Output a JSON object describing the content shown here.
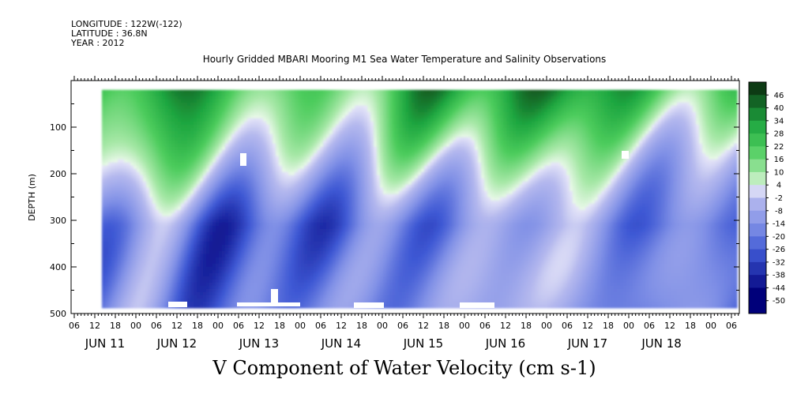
{
  "meta": {
    "longitude": "LONGITUDE : 122W(-122)",
    "latitude": "LATITUDE : 36.8N",
    "year": "YEAR : 2012"
  },
  "chart_data": {
    "type": "heatmap",
    "title": "Hourly Gridded MBARI Mooring M1 Sea Water Temperature and Salinity Observations",
    "variable_label": "V Component of Water Velocity (cm s-1)",
    "ylabel": "DEPTH (m)",
    "y_axis": {
      "range": [
        0,
        500
      ],
      "inverted": true,
      "ticks": [
        "100",
        "200",
        "300",
        "400",
        "500"
      ]
    },
    "x_axis": {
      "hour_ticks": [
        "06",
        "12",
        "18",
        "00",
        "06",
        "12",
        "18",
        "00",
        "06",
        "12",
        "18",
        "00",
        "06",
        "12",
        "18",
        "00",
        "06",
        "12",
        "18",
        "00",
        "06",
        "12",
        "18",
        "00",
        "06",
        "12",
        "18",
        "00",
        "06",
        "12",
        "18",
        "00",
        "06"
      ],
      "date_labels": [
        "JUN 11",
        "JUN 12",
        "JUN 13",
        "JUN 14",
        "JUN 15",
        "JUN 16",
        "JUN 17",
        "JUN 18"
      ]
    },
    "colorbar": {
      "labels": [
        "46",
        "40",
        "34",
        "28",
        "22",
        "16",
        "10",
        "4",
        "-2",
        "-8",
        "-14",
        "-20",
        "-26",
        "-32",
        "-38",
        "-44",
        "-50"
      ],
      "range": [
        -50,
        46
      ],
      "zero_color": "#ffffff",
      "positive_dark": "#0d3b14",
      "negative_dark": "#00007a"
    },
    "depth_range_m": [
      20,
      485
    ],
    "grid": false
  }
}
